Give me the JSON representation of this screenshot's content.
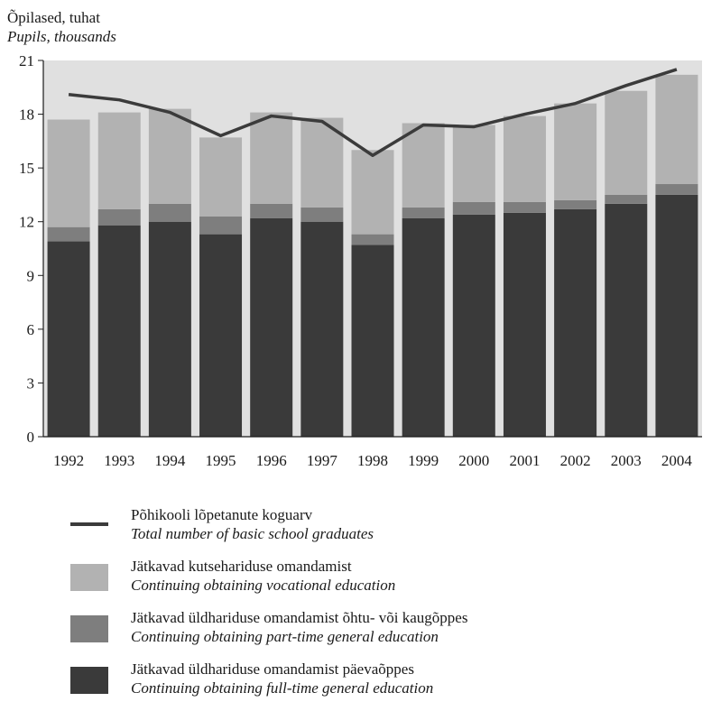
{
  "chart_data": {
    "type": "bar",
    "stacked": true,
    "ylabel_et": "Õpilased, tuhat",
    "ylabel_en": "Pupils, thousands",
    "categories": [
      "1992",
      "1993",
      "1994",
      "1995",
      "1996",
      "1997",
      "1998",
      "1999",
      "2000",
      "2001",
      "2002",
      "2003",
      "2004"
    ],
    "ylim": [
      0,
      21
    ],
    "yticks": [
      0,
      3,
      6,
      9,
      12,
      15,
      18,
      21
    ],
    "grid": false,
    "series": [
      {
        "name": "Continuing obtaining full-time general education",
        "name_et": "Jätkavad üldhariduse omandamist päevaõppes",
        "kind": "bar",
        "color": "#3a3a3a",
        "values": [
          10.9,
          11.8,
          12.0,
          11.3,
          12.2,
          12.0,
          10.7,
          12.2,
          12.4,
          12.5,
          12.7,
          13.0,
          13.5
        ]
      },
      {
        "name": "Continuing obtaining part-time general education",
        "name_et": "Jätkavad üldhariduse omandamist õhtu- või kaugõppes",
        "kind": "bar",
        "color": "#7e7e7e",
        "values": [
          0.8,
          0.9,
          1.0,
          1.0,
          0.8,
          0.8,
          0.6,
          0.6,
          0.7,
          0.6,
          0.5,
          0.5,
          0.6
        ]
      },
      {
        "name": "Continuing obtaining vocational education",
        "name_et": "Jätkavad kutsehariduse omandamist",
        "kind": "bar",
        "color": "#b2b2b2",
        "values": [
          6.0,
          5.4,
          5.3,
          4.4,
          5.1,
          5.0,
          4.7,
          4.7,
          4.3,
          4.8,
          5.4,
          5.8,
          6.1
        ]
      },
      {
        "name": "Total number of basic school graduates",
        "name_et": "Põhikooli lõpetanute koguarv",
        "kind": "line",
        "color": "#3b3b3b",
        "values": [
          19.1,
          18.8,
          18.1,
          16.8,
          17.9,
          17.6,
          15.7,
          17.4,
          17.3,
          18.0,
          18.6,
          19.6,
          20.5
        ]
      }
    ],
    "legend_position": "bottom",
    "plot_background": "#e0e0e0"
  }
}
